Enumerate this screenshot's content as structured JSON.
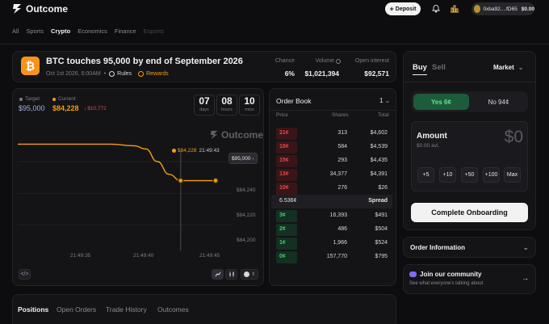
{
  "header": {
    "brand": "Outcome",
    "deposit_label": "Deposit",
    "wallet_address": "0xba92....fD65",
    "wallet_balance": "$0.00"
  },
  "categories": [
    {
      "label": "All",
      "state": "normal"
    },
    {
      "label": "Sports",
      "state": "normal"
    },
    {
      "label": "Crypto",
      "state": "active"
    },
    {
      "label": "Economics",
      "state": "normal"
    },
    {
      "label": "Finance",
      "state": "normal"
    },
    {
      "label": "Esports",
      "state": "disabled"
    }
  ],
  "market": {
    "title": "BTC touches 95,000 by end of September 2026",
    "date": "Oct 1st 2026, 6:00AM",
    "separator": "•",
    "rules_label": "Rules",
    "rewards_label": "Rewards",
    "stats": {
      "chance_label": "Chance",
      "chance": "6%",
      "volume_label": "Volume",
      "volume": "$1,021,394",
      "oi_label": "Open interest",
      "open_interest": "$92,571"
    }
  },
  "price_panel": {
    "target_label": "Target",
    "target_value": "$95,000",
    "current_label": "Current",
    "current_value": "$84,228",
    "delta": "$10,772",
    "countdown": [
      {
        "value": "07",
        "unit": "days"
      },
      {
        "value": "08",
        "unit": "hours"
      },
      {
        "value": "10",
        "unit": "mins"
      }
    ],
    "watermark": "Outcome",
    "marker_price": "$84,228",
    "marker_time": "21:49:43",
    "axis_badge": "$95,000"
  },
  "chart_data": {
    "type": "line",
    "title": "",
    "xlabel": "",
    "ylabel": "",
    "x_ticks": [
      "21:49:35",
      "21:49:40",
      "21:49:45"
    ],
    "y_ticks": [
      "$84,240",
      "$84,220",
      "$84,200"
    ],
    "ylim": [
      84190,
      84260
    ],
    "series": [
      {
        "color": "#f59e0b",
        "x": [
          "21:49:29",
          "21:49:33",
          "21:49:37",
          "21:49:39",
          "21:49:40",
          "21:49:41",
          "21:49:42",
          "21:49:43",
          "21:49:45",
          "21:49:46"
        ],
        "values": [
          84251,
          84251,
          84251,
          84250,
          84248,
          84240,
          84232,
          84228,
          84228,
          84228
        ]
      }
    ]
  },
  "order_book": {
    "title": "Order Book",
    "qty": "1",
    "headers": {
      "price": "Price",
      "shares": "Shares",
      "total": "Total"
    },
    "asks": [
      {
        "price": "21¢",
        "shares": "313",
        "total": "$4,602"
      },
      {
        "price": "18¢",
        "shares": "584",
        "total": "$4,539"
      },
      {
        "price": "15¢",
        "shares": "293",
        "total": "$4,435"
      },
      {
        "price": "13¢",
        "shares": "34,377",
        "total": "$4,391"
      },
      {
        "price": "10¢",
        "shares": "276",
        "total": "$26"
      }
    ],
    "spread_value": "6.536¢",
    "spread_label": "Spread",
    "bids": [
      {
        "price": "3¢",
        "shares": "16,393",
        "total": "$491"
      },
      {
        "price": "2¢",
        "shares": "486",
        "total": "$504"
      },
      {
        "price": "1¢",
        "shares": "1,966",
        "total": "$524"
      },
      {
        "price": "0¢",
        "shares": "157,770",
        "total": "$795"
      }
    ]
  },
  "trade": {
    "buy_label": "Buy",
    "sell_label": "Sell",
    "order_type": "Market",
    "yes_label": "Yes 6¢",
    "no_label": "No 94¢",
    "amount_label": "Amount",
    "amount_value": "$0",
    "available": "$0.00 avl.",
    "increments": [
      "+5",
      "+10",
      "+50",
      "+100",
      "Max"
    ],
    "cta": "Complete Onboarding",
    "order_info": "Order Information",
    "community_title": "Join our community",
    "community_sub": "See what everyone's talking about"
  },
  "tabs": [
    "Positions",
    "Open Orders",
    "Trade History",
    "Outcomes"
  ],
  "colors": {
    "accent": "#f59e0b",
    "yes": "#3ecf6e",
    "no": "#e5484d",
    "bitcoin": "#f7931a"
  }
}
